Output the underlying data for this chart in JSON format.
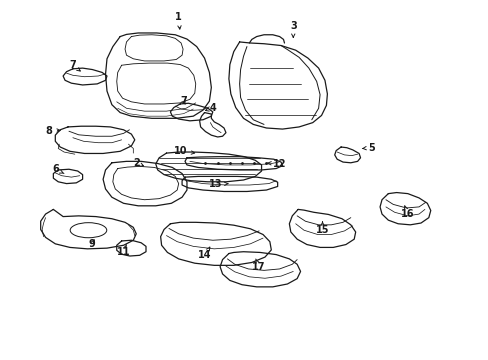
{
  "background_color": "#ffffff",
  "line_color": "#1a1a1a",
  "figsize": [
    4.89,
    3.6
  ],
  "dpi": 100,
  "labels": {
    "1": [
      0.365,
      0.955,
      0.368,
      0.91
    ],
    "7a": [
      0.148,
      0.82,
      0.165,
      0.802
    ],
    "7b": [
      0.375,
      0.72,
      0.382,
      0.703
    ],
    "4": [
      0.435,
      0.7,
      0.418,
      0.693
    ],
    "8": [
      0.098,
      0.638,
      0.13,
      0.638
    ],
    "10": [
      0.37,
      0.58,
      0.4,
      0.575
    ],
    "3": [
      0.6,
      0.93,
      0.6,
      0.895
    ],
    "5": [
      0.76,
      0.59,
      0.735,
      0.587
    ],
    "2": [
      0.278,
      0.548,
      0.295,
      0.538
    ],
    "12": [
      0.572,
      0.545,
      0.54,
      0.548
    ],
    "6": [
      0.112,
      0.53,
      0.13,
      0.518
    ],
    "13": [
      0.44,
      0.488,
      0.468,
      0.49
    ],
    "9": [
      0.188,
      0.322,
      0.195,
      0.343
    ],
    "11": [
      0.252,
      0.298,
      0.258,
      0.32
    ],
    "14": [
      0.418,
      0.29,
      0.43,
      0.315
    ],
    "17": [
      0.53,
      0.258,
      0.523,
      0.28
    ],
    "15": [
      0.66,
      0.36,
      0.66,
      0.385
    ],
    "16": [
      0.835,
      0.405,
      0.828,
      0.43
    ]
  }
}
